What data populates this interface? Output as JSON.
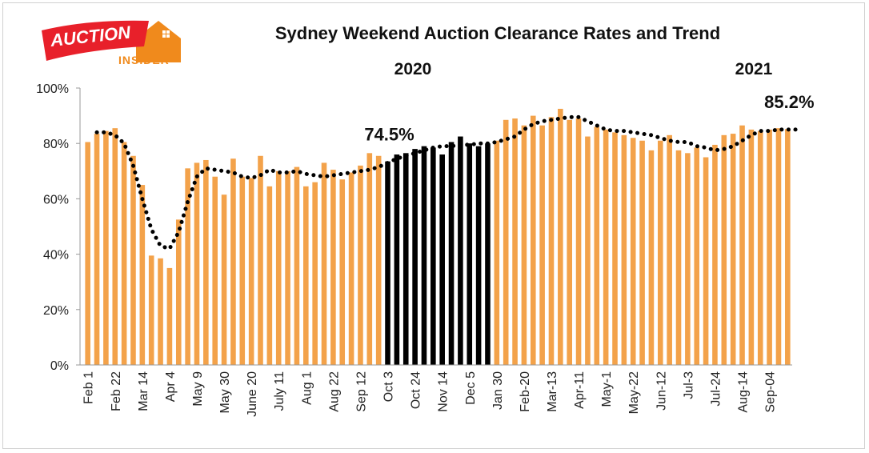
{
  "logo": {
    "word1": "AUCTION",
    "word2": "INSIDER"
  },
  "chart_data": {
    "type": "bar",
    "title": "Sydney Weekend Auction Clearance Rates and Trend",
    "year_labels": [
      "2020",
      "2021"
    ],
    "ylim": [
      0,
      100
    ],
    "y_ticks": [
      "0%",
      "20%",
      "40%",
      "60%",
      "80%",
      "100%"
    ],
    "x_tick_labels": [
      "Feb 1",
      "Feb 22",
      "Mar 14",
      "Apr 4",
      "May 9",
      "May 30",
      "June 20",
      "July 11",
      "Aug 1",
      "Aug 22",
      "Sep 12",
      "Oct 3",
      "Oct 24",
      "Nov 14",
      "Dec 5",
      "Jan 30",
      "Feb-20",
      "Mar-13",
      "Apr-11",
      "May-1",
      "May-22",
      "Jun-12",
      "Jul-3",
      "Jul-24",
      "Aug-14",
      "Sep-04"
    ],
    "x_tick_label_bar_index": [
      0,
      3,
      6,
      9,
      12,
      15,
      18,
      21,
      24,
      27,
      30,
      33,
      36,
      39,
      42,
      45,
      48,
      51,
      54,
      57,
      60,
      63,
      66,
      69,
      72,
      75
    ],
    "series": [
      {
        "values": [
          80.5,
          83.5,
          84.5,
          85.5,
          80.5,
          75.5,
          65,
          39.5,
          38.5,
          35,
          52.5,
          71,
          73,
          74,
          68,
          61.5,
          74.5,
          68,
          67.5,
          75.5,
          64.5,
          70,
          70,
          71.5,
          64.5,
          66,
          73,
          70.5,
          67,
          69.5,
          72,
          76.5,
          75.5,
          73.5,
          76,
          76.5,
          78,
          79,
          78.5,
          76,
          80.5,
          82.5,
          80,
          79,
          80,
          81,
          88.5,
          89,
          86.5,
          90,
          86.5,
          89.5,
          92.5,
          88.5,
          89,
          82.5,
          86,
          85,
          84,
          83,
          82,
          81,
          77.5,
          81,
          83,
          77.5,
          76.5,
          78.5,
          75,
          79.5,
          83,
          83.5,
          86.5,
          85,
          84.5,
          85,
          85.5,
          85.2
        ]
      },
      {
        "values": [
          84,
          84,
          83,
          80,
          72,
          60,
          49,
          43,
          42,
          48,
          59,
          68,
          71,
          70.5,
          70,
          69.5,
          68,
          67.5,
          68.5,
          70.5,
          69.5,
          69.5,
          70,
          69,
          68.5,
          68,
          68.5,
          69,
          69.5,
          70,
          70.5,
          71.5,
          73,
          74.5,
          75.5,
          76.5,
          77.5,
          78.5,
          79,
          79,
          79.5,
          79.5,
          80,
          80,
          80.5,
          81.5,
          82.5,
          85,
          87,
          88,
          88.5,
          89,
          89.5,
          89.5,
          88,
          86.5,
          85,
          84.5,
          84.5,
          84,
          83.5,
          83,
          82,
          81,
          80.5,
          80.5,
          79,
          78.5,
          77.5,
          78,
          79,
          81,
          83,
          84.5,
          84.5,
          85,
          85,
          85
        ]
      }
    ],
    "highlight_range_bar_index": [
      33,
      44
    ],
    "annotations": [
      {
        "label": "74.5%",
        "bar_index": 33
      },
      {
        "label": "85.2%",
        "bar_index": 77
      }
    ],
    "colors": {
      "bar": "#F3A24A",
      "highlight": "#000000",
      "trend": "#000000",
      "logo_red": "#E8202A",
      "logo_orange": "#F08A1C"
    },
    "grid": false,
    "legend": "none"
  }
}
